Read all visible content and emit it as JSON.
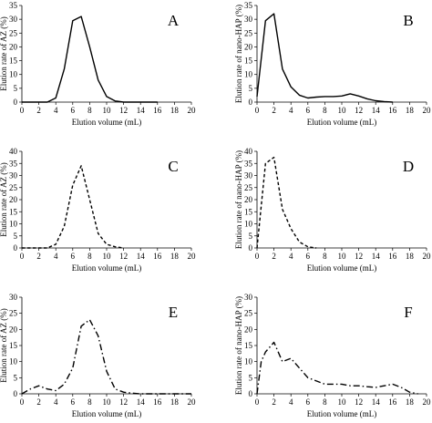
{
  "chart_data": [
    {
      "type": "line",
      "panel_label": "A",
      "xlabel": "Elution volume (mL)",
      "ylabel": "Elution rate of AZ (%)",
      "xlim": [
        0,
        20
      ],
      "ylim": [
        0,
        35
      ],
      "xticks": [
        0,
        2,
        4,
        6,
        8,
        10,
        12,
        14,
        16,
        18,
        20
      ],
      "yticks": [
        0,
        5,
        10,
        15,
        20,
        25,
        30,
        35
      ],
      "line_style": "solid",
      "grid": false,
      "series": [
        {
          "x": [
            0,
            1,
            2,
            3,
            4,
            5,
            6,
            7,
            8,
            9,
            10,
            11,
            12,
            13,
            14,
            15,
            16
          ],
          "y": [
            0,
            0,
            0,
            0,
            1.5,
            12,
            29.5,
            31,
            20,
            8,
            2,
            0.4,
            0,
            0,
            0,
            0,
            0
          ]
        }
      ]
    },
    {
      "type": "line",
      "panel_label": "B",
      "xlabel": "Elution volume (mL)",
      "ylabel": "Elution rate of nano-HAP (%)",
      "xlim": [
        0,
        20
      ],
      "ylim": [
        0,
        35
      ],
      "xticks": [
        0,
        2,
        4,
        6,
        8,
        10,
        12,
        14,
        16,
        18,
        20
      ],
      "yticks": [
        0,
        5,
        10,
        15,
        20,
        25,
        30,
        35
      ],
      "line_style": "solid",
      "grid": false,
      "series": [
        {
          "x": [
            0,
            1,
            2,
            3,
            4,
            5,
            6,
            7,
            8,
            9,
            10,
            11,
            12,
            13,
            14,
            15,
            16
          ],
          "y": [
            2,
            29.5,
            32,
            12,
            5.5,
            2.5,
            1.5,
            1.8,
            2,
            2,
            2.2,
            3,
            2.2,
            1.2,
            0.5,
            0.2,
            0
          ]
        }
      ]
    },
    {
      "type": "line",
      "panel_label": "C",
      "xlabel": "Elution volume (mL)",
      "ylabel": "Elution rate of AZ (%)",
      "xlim": [
        0,
        20
      ],
      "ylim": [
        0,
        40
      ],
      "xticks": [
        0,
        2,
        4,
        6,
        8,
        10,
        12,
        14,
        16,
        18,
        20
      ],
      "yticks": [
        0,
        5,
        10,
        15,
        20,
        25,
        30,
        35,
        40
      ],
      "line_style": "dashed",
      "grid": false,
      "series": [
        {
          "x": [
            0,
            1,
            2,
            3,
            4,
            5,
            6,
            7,
            8,
            9,
            10,
            11,
            12
          ],
          "y": [
            0,
            0,
            0,
            0,
            1.5,
            9,
            26,
            34,
            20,
            6,
            1.5,
            0.5,
            0
          ]
        }
      ]
    },
    {
      "type": "line",
      "panel_label": "D",
      "xlabel": "Elution volume (mL)",
      "ylabel": "Elution rate of nano-HAP (%)",
      "xlim": [
        0,
        20
      ],
      "ylim": [
        0,
        40
      ],
      "xticks": [
        0,
        2,
        4,
        6,
        8,
        10,
        12,
        14,
        16,
        18,
        20
      ],
      "yticks": [
        0,
        5,
        10,
        15,
        20,
        25,
        30,
        35,
        40
      ],
      "line_style": "dashed",
      "grid": false,
      "series": [
        {
          "x": [
            0,
            1,
            2,
            3,
            4,
            5,
            6,
            7
          ],
          "y": [
            0,
            35,
            37.5,
            16,
            8,
            2.5,
            0.5,
            0
          ]
        }
      ]
    },
    {
      "type": "line",
      "panel_label": "E",
      "xlabel": "Elution volume (mL)",
      "ylabel": "Elution rate of AZ (%)",
      "xlim": [
        0,
        20
      ],
      "ylim": [
        0,
        30
      ],
      "xticks": [
        0,
        2,
        4,
        6,
        8,
        10,
        12,
        14,
        16,
        18,
        20
      ],
      "yticks": [
        0,
        5,
        10,
        15,
        20,
        25,
        30
      ],
      "line_style": "dash-dot",
      "grid": false,
      "series": [
        {
          "x": [
            0,
            1,
            2,
            3,
            4,
            5,
            6,
            7,
            8,
            9,
            10,
            11,
            12,
            13,
            14,
            15,
            16,
            17,
            18,
            19,
            20
          ],
          "y": [
            0,
            1.5,
            2.5,
            1.5,
            1,
            3,
            8,
            21,
            23,
            18,
            7,
            1.5,
            0.5,
            0.2,
            0,
            0,
            0,
            0,
            0,
            0,
            0
          ]
        }
      ]
    },
    {
      "type": "line",
      "panel_label": "F",
      "xlabel": "Elution volume (mL)",
      "ylabel": "Elution rate of nano-HAP (%)",
      "xlim": [
        0,
        20
      ],
      "ylim": [
        0,
        30
      ],
      "xticks": [
        0,
        2,
        4,
        6,
        8,
        10,
        12,
        14,
        16,
        18,
        20
      ],
      "yticks": [
        0,
        5,
        10,
        15,
        20,
        25,
        30
      ],
      "line_style": "dash-dot",
      "grid": false,
      "series": [
        {
          "x": [
            0,
            0.5,
            1,
            2,
            3,
            4,
            5,
            6,
            7,
            8,
            9,
            10,
            11,
            12,
            13,
            14,
            15,
            16,
            17,
            18,
            19
          ],
          "y": [
            0,
            10,
            13,
            16,
            10,
            11,
            8,
            5,
            4,
            3,
            3,
            3,
            2.5,
            2.5,
            2.2,
            2,
            2.5,
            3,
            2,
            0.5,
            0
          ]
        }
      ]
    }
  ]
}
